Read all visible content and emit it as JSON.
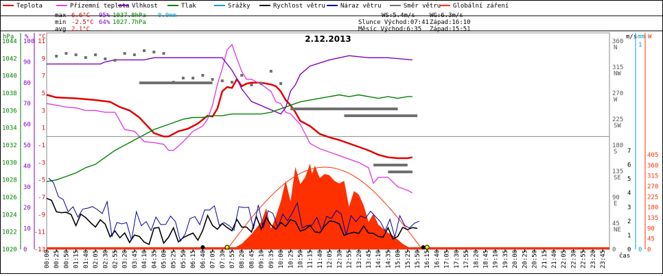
{
  "chart_data": {
    "type": "line",
    "title": "2.12.2013",
    "xlabel": "čas",
    "legend": [
      {
        "name": "Teplota",
        "color": "#e00000"
      },
      {
        "name": "Přízemní teplota",
        "color": "#e040e0"
      },
      {
        "name": "Vlhkost",
        "color": "#8000c0"
      },
      {
        "name": "Tlak",
        "color": "#008000"
      },
      {
        "name": "Srážky",
        "color": "#00a0d0"
      },
      {
        "name": "Rychlost větru",
        "color": "#000000"
      },
      {
        "name": "Náraz větru",
        "color": "#0000a0"
      },
      {
        "name": "Směr větru",
        "color": "#707070"
      },
      {
        "name": "Globální záření",
        "color": "#ff3000"
      }
    ],
    "stats": {
      "max": {
        "label": "max",
        "temp": "6.6°C",
        "hum": "95%",
        "press": "1037.8hPa",
        "rain": "0.0mm"
      },
      "min": {
        "label": "min",
        "temp": "-2.5°C",
        "hum": "64%",
        "press": "1027.7hPa"
      },
      "avg": {
        "label": "avg",
        "temp": "2.1°C"
      }
    },
    "info": {
      "ws": "WS:5.4m/s",
      "wg": "WG:6.3m/s",
      "sun": "Slunce Východ:07:41",
      "sun_set": "Západ:16:10",
      "moon": "Měsíc  Východ:6:35",
      "moon_set": "Západ:15:51"
    },
    "axes": {
      "press": {
        "unit": "hPa",
        "ticks": [
          "1044",
          "1042",
          "1040",
          "1038",
          "1036",
          "1034",
          "1032",
          "1030",
          "1028",
          "1026",
          "1024",
          "1022",
          "1020"
        ]
      },
      "hum": {
        "unit": "%",
        "ticks": [
          "100",
          "90",
          "80",
          "70",
          "60",
          "50",
          "40",
          "30",
          "20",
          "10",
          "0"
        ]
      },
      "temp": {
        "unit": "°C",
        "ticks": [
          "11",
          "9",
          "7",
          "5",
          "3",
          "1",
          "-1",
          "-3",
          "-5",
          "-7",
          "-9",
          "-11",
          "-13"
        ]
      },
      "wind": {
        "unit": "m/s",
        "ticks": [
          "7",
          "6",
          "5",
          "4",
          "3",
          "2",
          "1",
          "0"
        ]
      },
      "rain": {
        "unit": "mm",
        "ticks": [
          "1",
          "0"
        ]
      },
      "dir": {
        "ticks": [
          {
            "deg": "360",
            "lbl": "N"
          },
          {
            "deg": "315",
            "lbl": "NW"
          },
          {
            "deg": "270",
            "lbl": "W"
          },
          {
            "deg": "225",
            "lbl": "SW"
          },
          {
            "deg": "180",
            "lbl": "S"
          },
          {
            "deg": "135",
            "lbl": "SE"
          },
          {
            "deg": "90",
            "lbl": "E"
          },
          {
            "deg": "45",
            "lbl": "NE"
          },
          {
            "deg": "0",
            "lbl": ""
          }
        ]
      },
      "rad": {
        "unit": "W",
        "ticks": [
          "405",
          "360",
          "315",
          "270",
          "225",
          "180",
          "135",
          "90",
          "45",
          "0"
        ]
      }
    },
    "x_ticks": [
      "00:00",
      "00:25",
      "00:50",
      "01:15",
      "01:40",
      "02:05",
      "02:30",
      "02:55",
      "03:20",
      "03:45",
      "04:10",
      "04:35",
      "05:00",
      "05:25",
      "05:50",
      "06:15",
      "06:40",
      "07:05",
      "07:30",
      "07:55",
      "08:20",
      "08:45",
      "09:10",
      "09:35",
      "10:00",
      "10:25",
      "10:50",
      "11:15",
      "11:40",
      "12:05",
      "12:30",
      "12:55",
      "13:20",
      "13:45",
      "14:10",
      "14:35",
      "15:00",
      "15:25",
      "15:50",
      "16:15",
      "16:40",
      "17:05",
      "17:30",
      "17:55",
      "18:20",
      "18:45",
      "19:10",
      "19:35",
      "20:00",
      "20:25",
      "20:50",
      "21:15",
      "21:40",
      "22:05",
      "22:30",
      "22:55",
      "23:20",
      "23:45"
    ],
    "series": [
      {
        "name": "Teplota",
        "unit": "°C",
        "points": [
          [
            0,
            4.8
          ],
          [
            1,
            4.5
          ],
          [
            3,
            4.4
          ],
          [
            5,
            4.2
          ],
          [
            6.5,
            4.0
          ],
          [
            7.5,
            3.4
          ],
          [
            8.5,
            3.0
          ],
          [
            9.5,
            2.2
          ],
          [
            10.5,
            1.0
          ],
          [
            11,
            0.4
          ],
          [
            12,
            0.0
          ],
          [
            12.5,
            0.0
          ],
          [
            13.5,
            0.6
          ],
          [
            14.5,
            0.9
          ],
          [
            15.5,
            1.5
          ],
          [
            16.5,
            2.4
          ],
          [
            17,
            2.3
          ],
          [
            17.5,
            3.2
          ],
          [
            18,
            5.2
          ],
          [
            18.5,
            5.7
          ],
          [
            19,
            5.6
          ],
          [
            19.5,
            6.6
          ],
          [
            20,
            5.8
          ],
          [
            20.5,
            6.1
          ],
          [
            21,
            6.2
          ],
          [
            22,
            6.2
          ],
          [
            23,
            6.0
          ],
          [
            23.5,
            5.8
          ],
          [
            24,
            5.2
          ],
          [
            24.5,
            4.2
          ],
          [
            25,
            3.6
          ],
          [
            25.5,
            2.8
          ],
          [
            26,
            1.8
          ],
          [
            27,
            1.2
          ],
          [
            28,
            0.3
          ],
          [
            29,
            -0.1
          ],
          [
            30,
            -0.4
          ],
          [
            31,
            -0.8
          ],
          [
            32,
            -1.2
          ],
          [
            33,
            -1.6
          ],
          [
            34,
            -2.1
          ],
          [
            35,
            -2.4
          ],
          [
            36,
            -2.5
          ],
          [
            37,
            -2.5
          ],
          [
            37.5,
            -2.4
          ]
        ]
      },
      {
        "name": "Přízemní teplota",
        "unit": "°C",
        "points": [
          [
            0,
            3.8
          ],
          [
            1,
            3.6
          ],
          [
            2,
            3.4
          ],
          [
            3,
            3.3
          ],
          [
            4,
            3.0
          ],
          [
            5,
            3.0
          ],
          [
            6,
            2.8
          ],
          [
            7,
            2.8
          ],
          [
            7.5,
            1.8
          ],
          [
            8,
            0.8
          ],
          [
            9,
            0.6
          ],
          [
            10,
            -0.6
          ],
          [
            11,
            -0.7
          ],
          [
            12,
            -0.9
          ],
          [
            12.5,
            -1.6
          ],
          [
            13,
            -1.6
          ],
          [
            14,
            -0.6
          ],
          [
            15,
            0.6
          ],
          [
            16,
            1.2
          ],
          [
            16.5,
            2.0
          ],
          [
            17,
            3.6
          ],
          [
            17.5,
            6.0
          ],
          [
            18,
            7.8
          ],
          [
            18.5,
            10.0
          ],
          [
            19,
            10.6
          ],
          [
            19.5,
            9.0
          ],
          [
            20,
            7.5
          ],
          [
            20.5,
            6.6
          ],
          [
            21,
            6.6
          ],
          [
            22,
            6.0
          ],
          [
            23,
            5.2
          ],
          [
            23.5,
            4.0
          ],
          [
            24,
            3.8
          ],
          [
            24.5,
            2.8
          ],
          [
            25,
            2.6
          ],
          [
            25.5,
            2.0
          ],
          [
            26,
            1.4
          ],
          [
            27,
            -0.8
          ],
          [
            28,
            -1.4
          ],
          [
            29,
            -1.8
          ],
          [
            30,
            -2.2
          ],
          [
            31,
            -2.6
          ],
          [
            32,
            -3.0
          ],
          [
            33,
            -3.6
          ],
          [
            33.5,
            -5.4
          ],
          [
            34,
            -4.7
          ],
          [
            35,
            -4.7
          ],
          [
            36,
            -5.8
          ],
          [
            37,
            -6.2
          ],
          [
            37.5,
            -6.5
          ]
        ]
      },
      {
        "name": "Vlhkost",
        "unit": "%",
        "points": [
          [
            0,
            89
          ],
          [
            2,
            89
          ],
          [
            4,
            89
          ],
          [
            5.5,
            89
          ],
          [
            6,
            90
          ],
          [
            7,
            91
          ],
          [
            8,
            91
          ],
          [
            9,
            91
          ],
          [
            10,
            91
          ],
          [
            11,
            92
          ],
          [
            12,
            92
          ],
          [
            13,
            92
          ],
          [
            14,
            92
          ],
          [
            15,
            92
          ],
          [
            16,
            92
          ],
          [
            17,
            92
          ],
          [
            18,
            92
          ],
          [
            18.5,
            89
          ],
          [
            19,
            86
          ],
          [
            19.5,
            82
          ],
          [
            20,
            77
          ],
          [
            20.5,
            74
          ],
          [
            21,
            71
          ],
          [
            22,
            69
          ],
          [
            23,
            67
          ],
          [
            23.5,
            66
          ],
          [
            24,
            65
          ],
          [
            24.5,
            68
          ],
          [
            25,
            76
          ],
          [
            25.5,
            79
          ],
          [
            26,
            84
          ],
          [
            27,
            88
          ],
          [
            29,
            91
          ],
          [
            31,
            93
          ],
          [
            33,
            92
          ],
          [
            35,
            92
          ],
          [
            37.5,
            91
          ]
        ]
      },
      {
        "name": "Tlak",
        "unit": "hPa",
        "points": [
          [
            0,
            1027.8
          ],
          [
            1,
            1028.0
          ],
          [
            2,
            1028.4
          ],
          [
            3,
            1028.8
          ],
          [
            4,
            1029.4
          ],
          [
            5,
            1029.8
          ],
          [
            6,
            1030.6
          ],
          [
            7,
            1031.4
          ],
          [
            8,
            1032.0
          ],
          [
            9,
            1032.6
          ],
          [
            10,
            1033.2
          ],
          [
            11,
            1033.8
          ],
          [
            12,
            1034.2
          ],
          [
            13,
            1034.6
          ],
          [
            14,
            1035.0
          ],
          [
            15,
            1035.2
          ],
          [
            16,
            1035.2
          ],
          [
            17,
            1035.4
          ],
          [
            18,
            1035.4
          ],
          [
            19,
            1035.6
          ],
          [
            20,
            1035.6
          ],
          [
            21,
            1035.6
          ],
          [
            22,
            1035.6
          ],
          [
            23,
            1035.8
          ],
          [
            24,
            1036.2
          ],
          [
            25,
            1036.6
          ],
          [
            26,
            1037.0
          ],
          [
            27,
            1037.2
          ],
          [
            28,
            1037.4
          ],
          [
            29,
            1037.6
          ],
          [
            30,
            1037.8
          ],
          [
            31,
            1037.6
          ],
          [
            32,
            1037.8
          ],
          [
            33,
            1037.6
          ],
          [
            34,
            1037.4
          ],
          [
            35,
            1037.6
          ],
          [
            36,
            1037.4
          ],
          [
            37,
            1037.6
          ],
          [
            37.5,
            1037.6
          ]
        ]
      }
    ]
  }
}
